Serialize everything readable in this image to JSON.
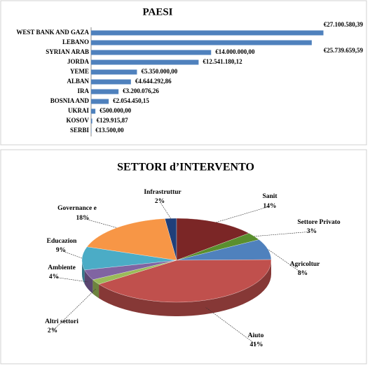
{
  "chart_data": [
    {
      "type": "bar",
      "orientation": "horizontal",
      "title": "PAESI",
      "categories": [
        "WEST BANK AND GAZA",
        "LEBANO",
        "SYRIAN ARAB",
        "JORDA",
        "YEME",
        "ALBAN",
        "IRA",
        "BOSNIA AND",
        "UKRAI",
        "KOSOV",
        "SERBI"
      ],
      "values": [
        27100580.39,
        25739659.59,
        14000000,
        12541180.12,
        5350000,
        4644292.86,
        3200076.26,
        2054450.15,
        500000,
        129915.87,
        13500
      ],
      "value_labels": [
        "€27.100.580,39",
        "€25.739.659,59",
        "€14.000.000,00",
        "€12.541.180,12",
        "€5.350.000,00",
        "€4.644.292,86",
        "€3.200.076,26",
        "€2.054.450,15",
        "€500.000,00",
        "€129.915,87",
        "€13.500,00"
      ],
      "color": "#4f81bd",
      "xlim": [
        0,
        30000000
      ]
    },
    {
      "type": "pie",
      "title": "SETTORI d’INTERVENTO",
      "categories": [
        "Infrastruttur",
        "Sanit",
        "Settore Privato",
        "Agricoltur",
        "Aiuto",
        "Altri settori",
        "Ambiente",
        "Educazion",
        "Governance  e"
      ],
      "values": [
        2,
        14,
        3,
        8,
        41,
        2,
        4,
        9,
        18
      ],
      "value_labels": [
        "2%",
        "14%",
        "3%",
        "8%",
        "41%",
        "2%",
        "4%",
        "9%",
        "18%"
      ],
      "colors": [
        "#1f3f7a",
        "#7b2626",
        "#5a8f2e",
        "#4f81bd",
        "#c0504d",
        "#9bbb59",
        "#8064a2",
        "#4bacc6",
        "#f79646"
      ]
    }
  ]
}
